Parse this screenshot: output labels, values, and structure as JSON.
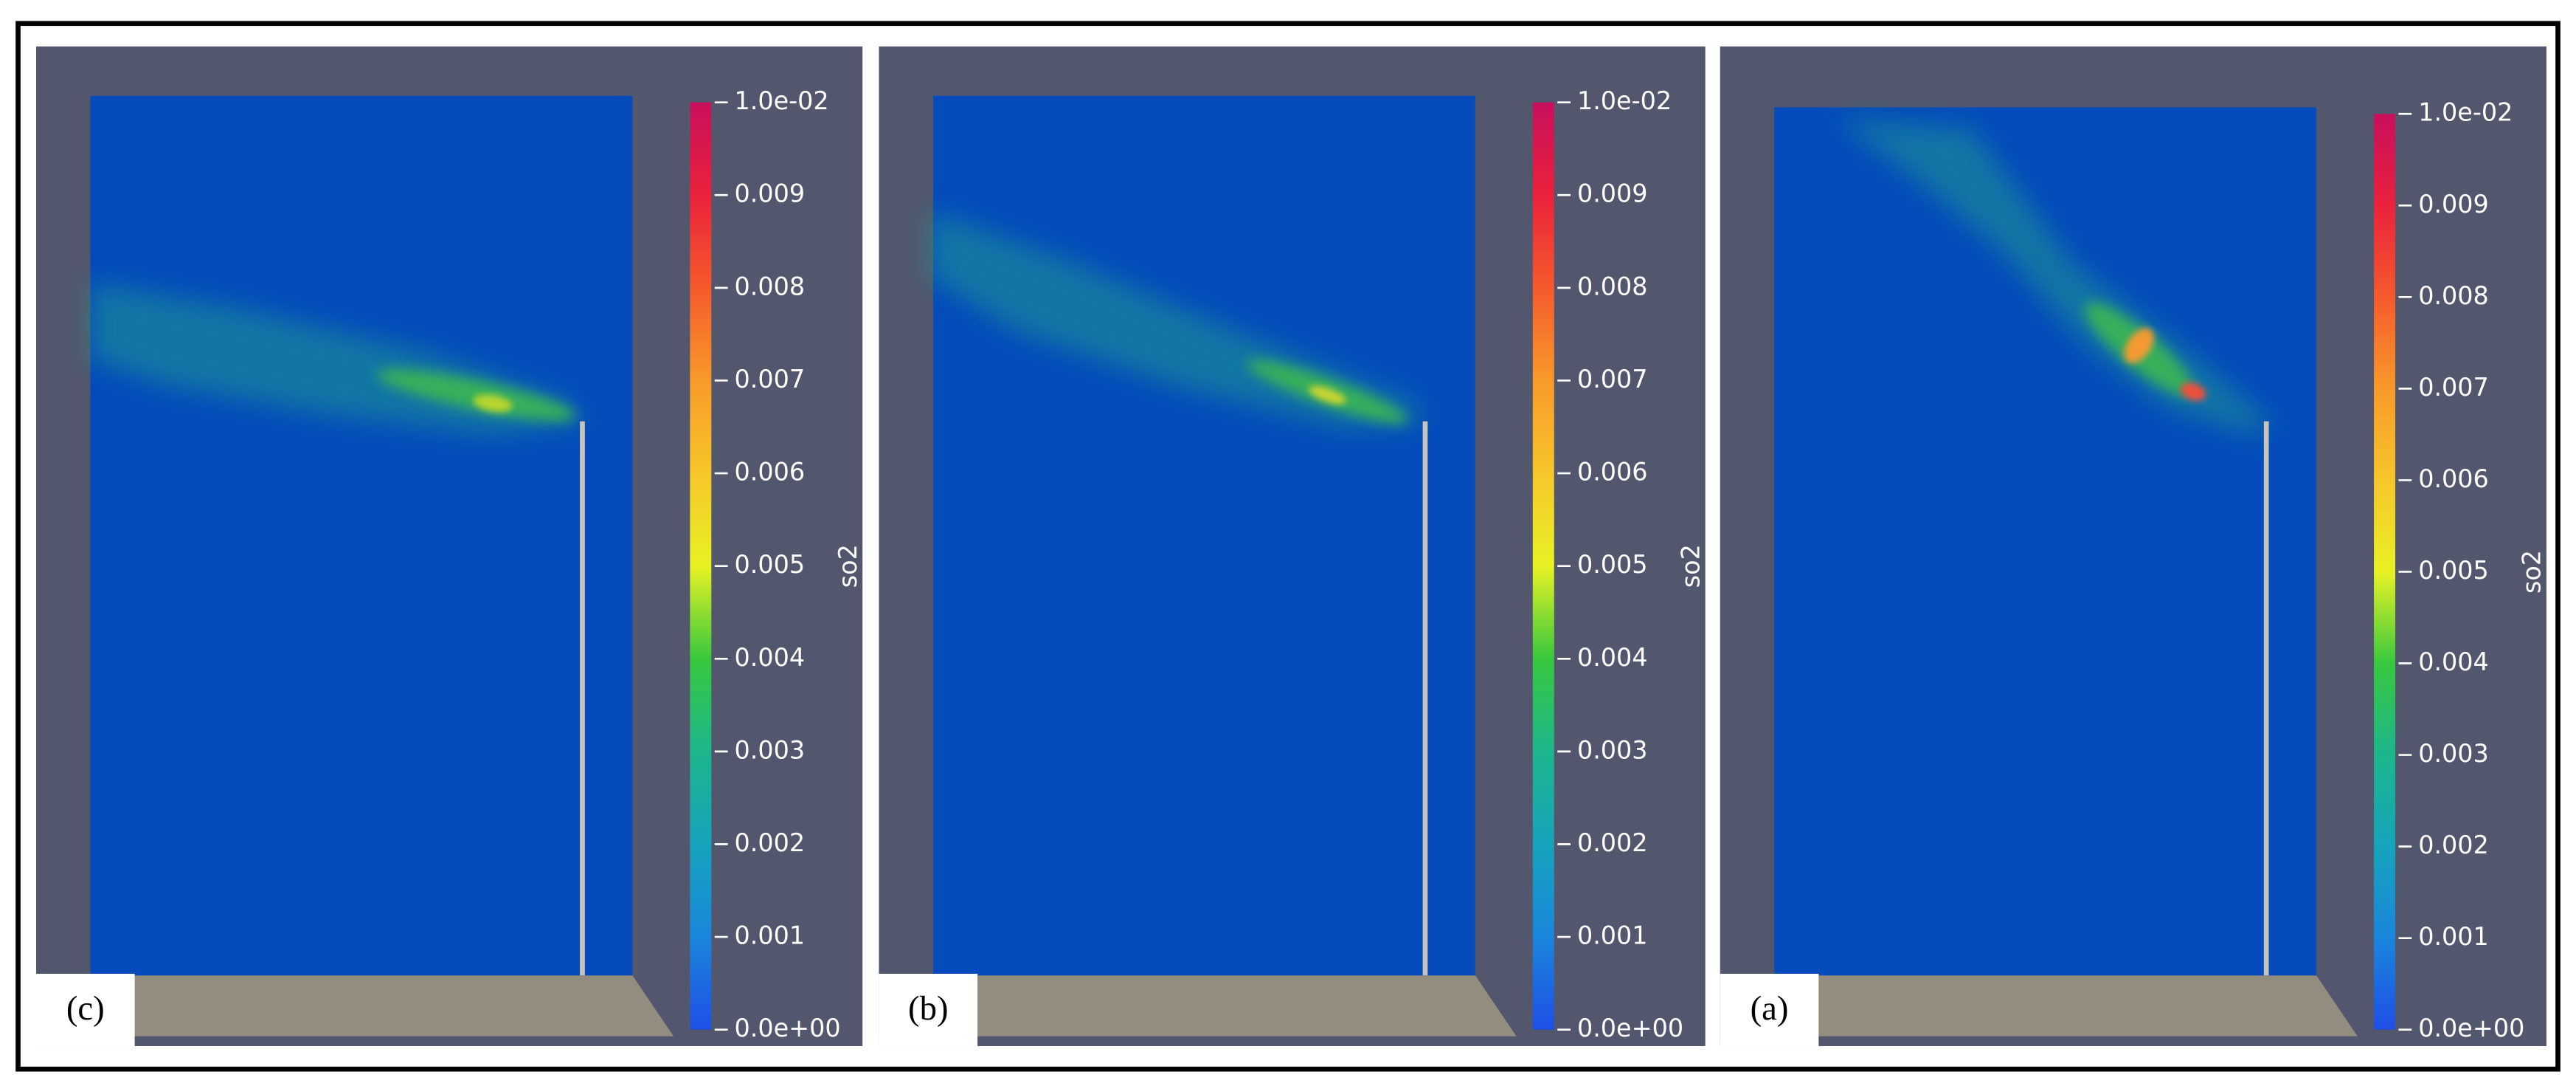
{
  "panels": [
    {
      "label": "(c)",
      "colorbar": {
        "title": "so2",
        "lim": [
          0,
          0.01
        ],
        "ticks": [
          {
            "value": 0,
            "label": "0.0e+00"
          },
          0.001,
          0.002,
          0.003,
          0.004,
          0.005,
          0.006,
          0.007,
          0.008,
          0.009,
          {
            "value": 0.01,
            "label": "1.0e-02"
          }
        ]
      }
    },
    {
      "label": "(b)",
      "colorbar": {
        "title": "so2",
        "lim": [
          0,
          0.01
        ],
        "ticks": [
          {
            "value": 0,
            "label": "0.0e+00"
          },
          0.001,
          0.002,
          0.003,
          0.004,
          0.005,
          0.006,
          0.007,
          0.008,
          0.009,
          {
            "value": 0.01,
            "label": "1.0e-02"
          }
        ]
      }
    },
    {
      "label": "(a)",
      "colorbar": {
        "title": "so2",
        "lim": [
          0,
          0.01
        ],
        "ticks": [
          {
            "value": 0,
            "label": "0.0e+00"
          },
          0.001,
          0.002,
          0.003,
          0.004,
          0.005,
          0.006,
          0.007,
          0.008,
          0.009,
          {
            "value": 0.01,
            "label": "1.0e-02"
          }
        ]
      }
    }
  ]
}
